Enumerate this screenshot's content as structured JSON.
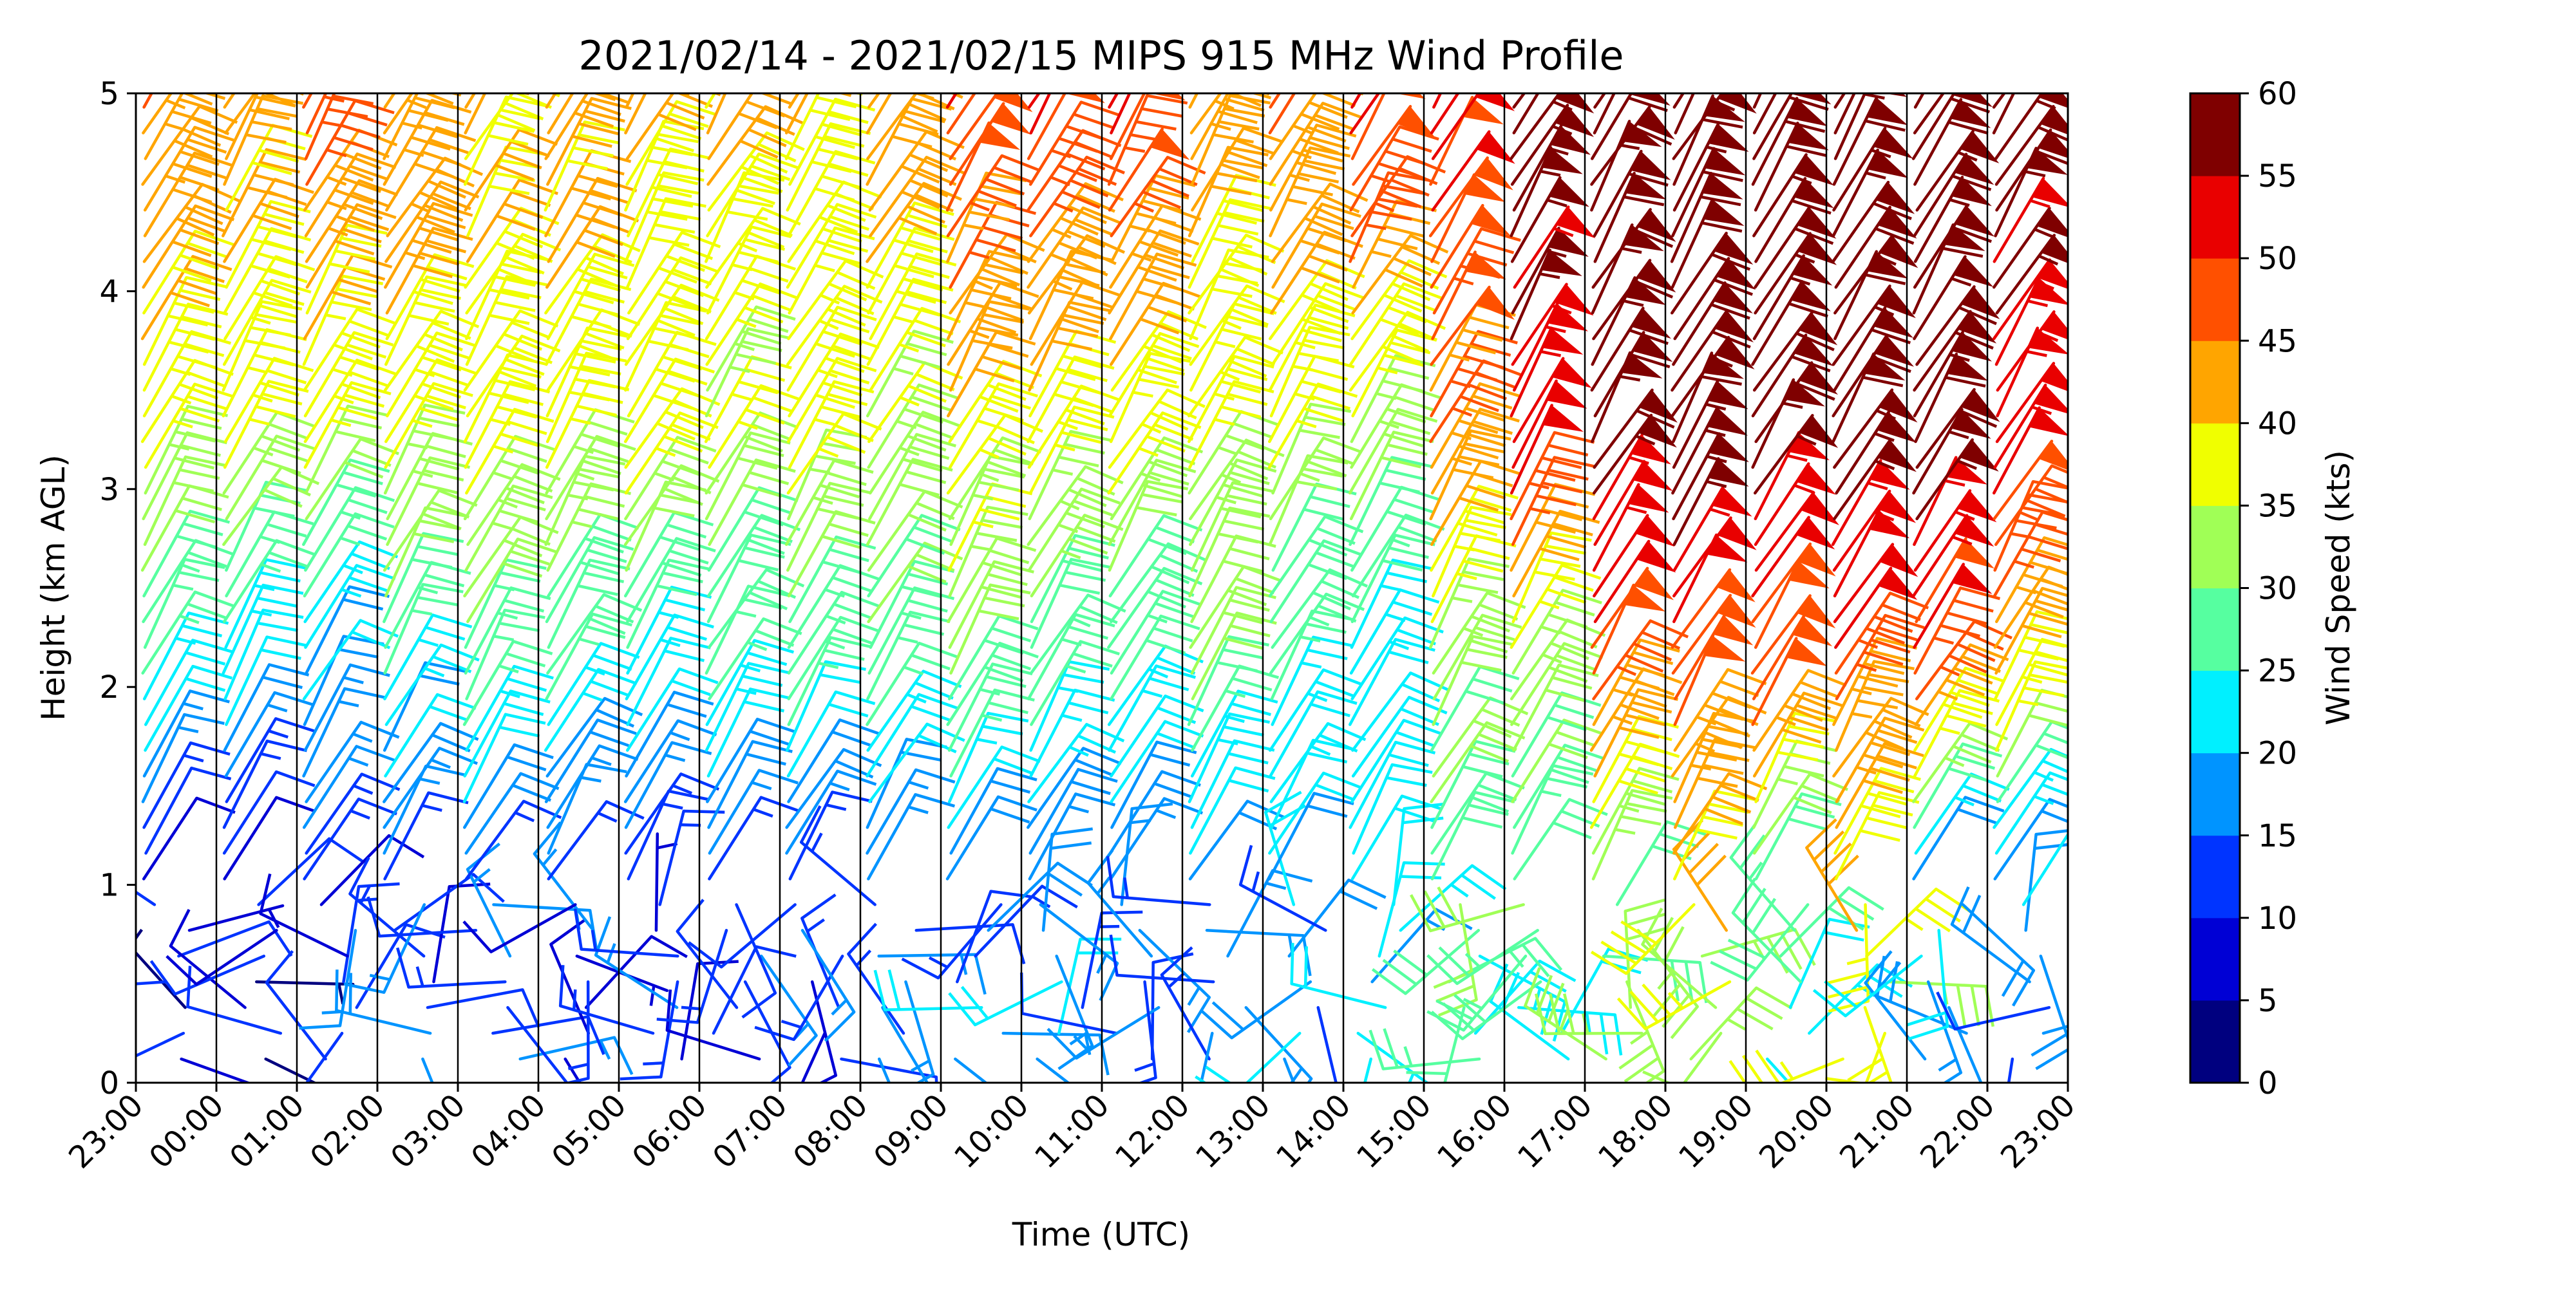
{
  "chart_data": {
    "type": "wind-barb-profile",
    "title": "2021/02/14 - 2021/02/15 MIPS 915 MHz Wind Profile",
    "xlabel": "Time (UTC)",
    "ylabel": "Height (km AGL)",
    "x_ticks": [
      "23:00",
      "00:00",
      "01:00",
      "02:00",
      "03:00",
      "04:00",
      "05:00",
      "06:00",
      "07:00",
      "08:00",
      "09:00",
      "10:00",
      "11:00",
      "12:00",
      "13:00",
      "14:00",
      "15:00",
      "16:00",
      "17:00",
      "18:00",
      "19:00",
      "20:00",
      "21:00",
      "22:00",
      "23:00"
    ],
    "y_ticks": [
      "0",
      "1",
      "2",
      "3",
      "4",
      "5"
    ],
    "ylim": [
      0,
      5
    ],
    "grid": "vertical lines at each hour",
    "colorbar": {
      "label": "Wind Speed (kts)",
      "ticks": [
        "0",
        "5",
        "10",
        "15",
        "20",
        "25",
        "30",
        "35",
        "40",
        "45",
        "50",
        "55",
        "60"
      ],
      "colors": [
        "#00007f",
        "#0000d5",
        "#0034ff",
        "#0094ff",
        "#00f0ff",
        "#56ffa0",
        "#a0ff56",
        "#f0ff00",
        "#ffa500",
        "#ff5000",
        "#e90000",
        "#7f0000"
      ]
    },
    "hourly_profiles": [
      {
        "time": "23:00",
        "low_kts": 6,
        "mid_kts": 22,
        "high_kts": 36,
        "upper_kts": 45
      },
      {
        "time": "00:00",
        "low_kts": 7,
        "mid_kts": 20,
        "high_kts": 36,
        "upper_kts": 42
      },
      {
        "time": "01:00",
        "low_kts": 10,
        "mid_kts": 18,
        "high_kts": 35,
        "upper_kts": 48
      },
      {
        "time": "02:00",
        "low_kts": 12,
        "mid_kts": 22,
        "high_kts": 38,
        "upper_kts": 45
      },
      {
        "time": "03:00",
        "low_kts": 12,
        "mid_kts": 25,
        "high_kts": 38,
        "upper_kts": 40
      },
      {
        "time": "04:00",
        "low_kts": 10,
        "mid_kts": 24,
        "high_kts": 38,
        "upper_kts": 42
      },
      {
        "time": "05:00",
        "low_kts": 10,
        "mid_kts": 22,
        "high_kts": 38,
        "upper_kts": 40
      },
      {
        "time": "06:00",
        "low_kts": 12,
        "mid_kts": 25,
        "high_kts": 35,
        "upper_kts": 40
      },
      {
        "time": "07:00",
        "low_kts": 10,
        "mid_kts": 25,
        "high_kts": 37,
        "upper_kts": 40
      },
      {
        "time": "08:00",
        "low_kts": 12,
        "mid_kts": 25,
        "high_kts": 35,
        "upper_kts": 44
      },
      {
        "time": "09:00",
        "low_kts": 15,
        "mid_kts": 28,
        "high_kts": 38,
        "upper_kts": 53
      },
      {
        "time": "10:00",
        "low_kts": 15,
        "mid_kts": 25,
        "high_kts": 38,
        "upper_kts": 52
      },
      {
        "time": "11:00",
        "low_kts": 12,
        "mid_kts": 25,
        "high_kts": 36,
        "upper_kts": 53
      },
      {
        "time": "12:00",
        "low_kts": 14,
        "mid_kts": 30,
        "high_kts": 35,
        "upper_kts": 44
      },
      {
        "time": "13:00",
        "low_kts": 15,
        "mid_kts": 25,
        "high_kts": 35,
        "upper_kts": 48
      },
      {
        "time": "14:00",
        "low_kts": 18,
        "mid_kts": 22,
        "high_kts": 35,
        "upper_kts": 52
      },
      {
        "time": "15:00",
        "low_kts": 25,
        "mid_kts": 30,
        "high_kts": 45,
        "upper_kts": 52
      },
      {
        "time": "16:00",
        "low_kts": 25,
        "mid_kts": 30,
        "high_kts": 53,
        "upper_kts": 58
      },
      {
        "time": "17:00",
        "low_kts": 30,
        "mid_kts": 45,
        "high_kts": 58,
        "upper_kts": 58
      },
      {
        "time": "18:00",
        "low_kts": 35,
        "mid_kts": 47,
        "high_kts": 58,
        "upper_kts": 58
      },
      {
        "time": "19:00",
        "low_kts": 25,
        "mid_kts": 47,
        "high_kts": 58,
        "upper_kts": 58
      },
      {
        "time": "20:00",
        "low_kts": 35,
        "mid_kts": 45,
        "high_kts": 58,
        "upper_kts": 58
      },
      {
        "time": "21:00",
        "low_kts": 15,
        "mid_kts": 45,
        "high_kts": 58,
        "upper_kts": 58
      },
      {
        "time": "22:00",
        "low_kts": 15,
        "mid_kts": 38,
        "high_kts": 53,
        "upper_kts": 58
      }
    ]
  }
}
